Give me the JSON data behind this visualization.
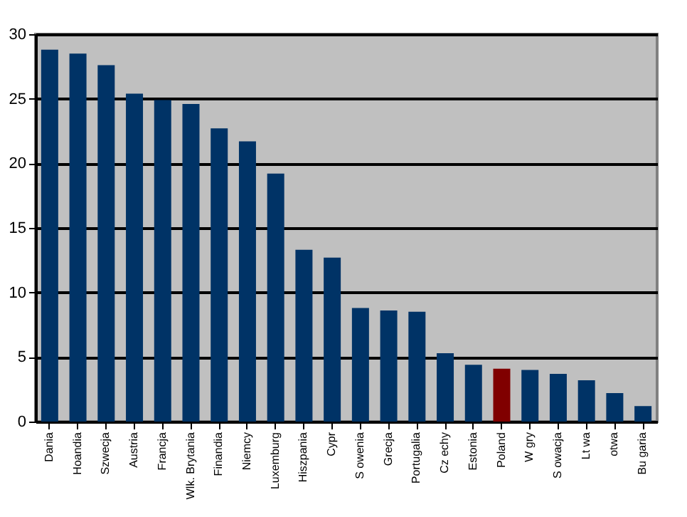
{
  "chart_data": {
    "type": "bar",
    "categories": [
      "Dania",
      "Hoandia",
      "Szwecja",
      "Austria",
      "Francja",
      "Wlk. Brytania",
      "Finandia",
      "Niemcy",
      "Luxemburg",
      "Hiszpania",
      "Cypr",
      "S owenia",
      "Grecja",
      "Portugalia",
      "Cz echy",
      "Estonia",
      "Poland",
      "W gry",
      "S owacja",
      "Lt wa",
      "otwa",
      "Bu garia"
    ],
    "values": [
      28.8,
      28.5,
      27.6,
      25.4,
      24.9,
      24.6,
      22.7,
      21.7,
      19.2,
      13.3,
      12.7,
      8.8,
      8.6,
      8.5,
      5.3,
      4.4,
      4.1,
      4.0,
      3.7,
      3.2,
      2.2,
      1.2
    ],
    "colors": [
      "#003366",
      "#003366",
      "#003366",
      "#003366",
      "#003366",
      "#003366",
      "#003366",
      "#003366",
      "#003366",
      "#003366",
      "#003366",
      "#003366",
      "#003366",
      "#003366",
      "#003366",
      "#003366",
      "#800000",
      "#003366",
      "#003366",
      "#003366",
      "#003366",
      "#003366"
    ],
    "ylim": [
      0,
      30
    ],
    "yticks": [
      0,
      5,
      10,
      15,
      20,
      25,
      30
    ],
    "grid": "y"
  }
}
